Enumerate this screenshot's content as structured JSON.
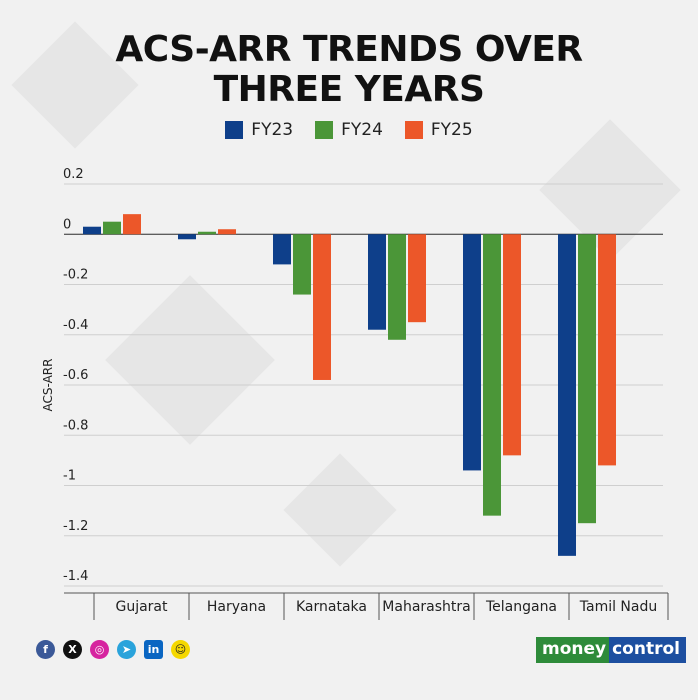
{
  "title_line1": "ACS-ARR TRENDS OVER",
  "title_line2": "THREE YEARS",
  "legend": [
    {
      "label": "FY23",
      "color": "#0e3f8a"
    },
    {
      "label": "FY24",
      "color": "#4b9638"
    },
    {
      "label": "FY25",
      "color": "#ec5729"
    }
  ],
  "logo": {
    "part1": "money",
    "part2": "control"
  },
  "social_icons": [
    "facebook-icon",
    "x-icon",
    "instagram-icon",
    "telegram-icon",
    "linkedin-icon",
    "snapchat-icon"
  ],
  "chart_data": {
    "type": "bar",
    "title": "ACS-ARR TRENDS OVER THREE YEARS",
    "xlabel": "",
    "ylabel": "ACS-ARR",
    "ylim": [
      -1.4,
      0.2
    ],
    "yticks": [
      "0.2",
      "0",
      "-0.2",
      "-0.4",
      "-0.6",
      "-0.8",
      "-1",
      "-1.2",
      "-1.4"
    ],
    "categories": [
      "Gujarat",
      "Haryana",
      "Karnataka",
      "Maharashtra",
      "Telangana",
      "Tamil Nadu"
    ],
    "series": [
      {
        "name": "FY23",
        "color": "#0e3f8a",
        "values": [
          0.03,
          -0.02,
          -0.12,
          -0.38,
          -0.94,
          -1.28
        ]
      },
      {
        "name": "FY24",
        "color": "#4b9638",
        "values": [
          0.05,
          0.01,
          -0.24,
          -0.42,
          -1.12,
          -1.15
        ]
      },
      {
        "name": "FY25",
        "color": "#ec5729",
        "values": [
          0.08,
          0.02,
          -0.58,
          -0.35,
          -0.88,
          -0.92
        ]
      }
    ],
    "grid": true,
    "legend_position": "top-center"
  }
}
